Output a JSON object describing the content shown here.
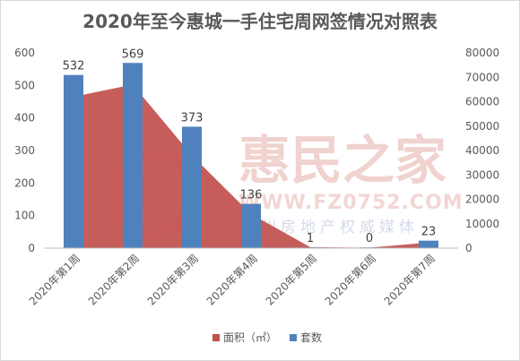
{
  "chart_data": {
    "type": "bar",
    "title": "2020年至今惠城一手住宅周网签情况对照表",
    "categories": [
      "2020年第1周",
      "2020年第2周",
      "2020年第3周",
      "2020年第4周",
      "2020年第5周",
      "2020年第6周",
      "2020年第7周"
    ],
    "series": [
      {
        "name": "面积（㎡）",
        "kind": "area",
        "axis": "right",
        "color": "#c0504d",
        "values": [
          62000,
          67000,
          38000,
          14000,
          400,
          200,
          2300
        ]
      },
      {
        "name": "套数",
        "kind": "bar",
        "axis": "left",
        "color": "#4f81bd",
        "values": [
          532,
          569,
          373,
          136,
          1,
          0,
          23
        ],
        "data_labels": [
          "532",
          "569",
          "373",
          "136",
          "1",
          "0",
          "23"
        ]
      }
    ],
    "y_left": {
      "min": 0,
      "max": 600,
      "ticks": [
        "0",
        "100",
        "200",
        "300",
        "400",
        "500",
        "600"
      ]
    },
    "y_right": {
      "min": 0,
      "max": 80000,
      "ticks": [
        "0",
        "10000",
        "20000",
        "30000",
        "40000",
        "50000",
        "60000",
        "70000",
        "80000"
      ]
    },
    "grid": false,
    "legend_position": "bottom"
  },
  "watermark": {
    "brand": "惠民之家",
    "url": "WWW.FZ0752.COM",
    "tagline": "惠州房地产权威媒体"
  }
}
